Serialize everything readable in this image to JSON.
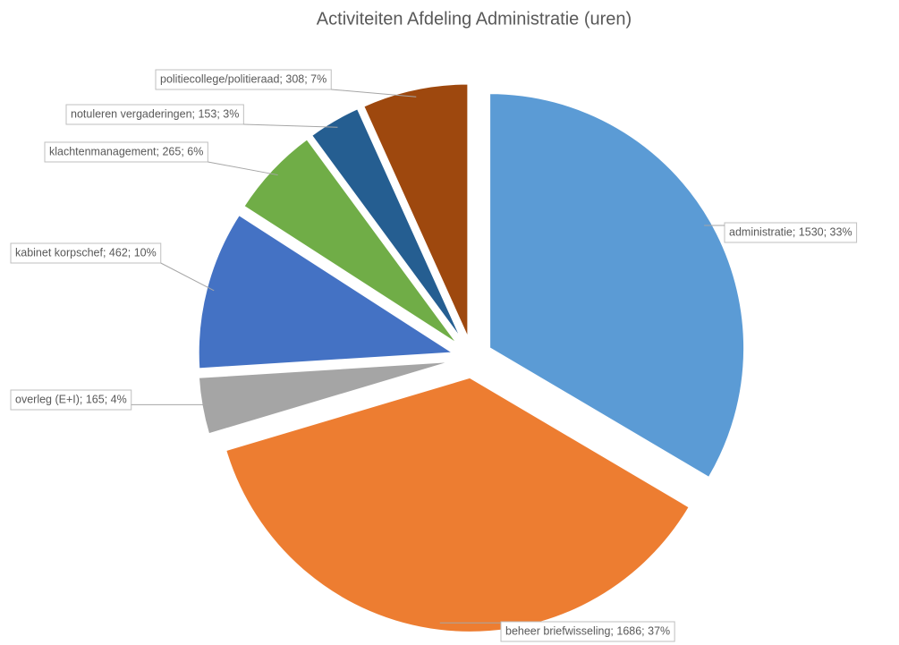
{
  "chart_data": {
    "type": "pie",
    "title": "Activiteiten Afdeling Administratie (uren)",
    "values": [
      1530,
      1686,
      165,
      462,
      265,
      153,
      308
    ],
    "value_labels": [
      "administratie; 1530; 33%",
      "beheer briefwisseling; 1686; 37%",
      "overleg (E+I); 165; 4%",
      "kabinet korpschef; 462; 10%",
      "klachtenmanagement; 265; 6%",
      "notuleren vergaderingen; 153; 3%",
      "politiecollege/politieraad; 308; 7%"
    ],
    "colors": [
      "#5b9bd5",
      "#ed7d31",
      "#a5a5a5",
      "#4472c4",
      "#70ad47",
      "#255e91",
      "#9e480e"
    ]
  }
}
